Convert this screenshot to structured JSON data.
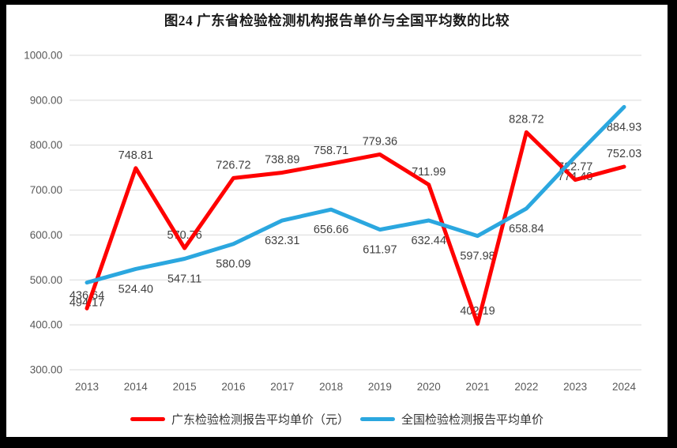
{
  "frame": {
    "background_color": "#000000",
    "canvas_color": "#ffffff"
  },
  "title": "图24  广东省检验检测机构报告单价与全国平均数的比较",
  "legend": {
    "items": [
      {
        "label": "广东检验检测报告平均单价（元）",
        "color": "#ff0000"
      },
      {
        "label": "全国检验检测报告平均单价",
        "color": "#2ba7df"
      }
    ],
    "position": "bottom"
  },
  "colors": {
    "gridline": "#d9d9d9",
    "tick_text": "#595959",
    "value_label_text": "#3f3f3f"
  },
  "chart_data": {
    "type": "line",
    "title": "图24  广东省检验检测机构报告单价与全国平均数的比较",
    "categories": [
      "2013",
      "2014",
      "2015",
      "2016",
      "2017",
      "2018",
      "2019",
      "2020",
      "2021",
      "2022",
      "2023",
      "2024"
    ],
    "series": [
      {
        "name": "广东检验检测报告平均单价（元）",
        "color": "#ff0000",
        "values": [
          436.64,
          748.81,
          570.76,
          726.72,
          738.89,
          758.71,
          779.36,
          711.99,
          402.19,
          828.72,
          722.77,
          752.03
        ]
      },
      {
        "name": "全国检验检测报告平均单价",
        "color": "#2ba7df",
        "values": [
          494.17,
          524.4,
          547.11,
          580.09,
          632.31,
          656.66,
          611.97,
          632.44,
          597.98,
          658.84,
          774.48,
          884.93
        ]
      }
    ],
    "xlabel": "",
    "ylabel": "",
    "ylim": [
      300,
      1000
    ],
    "ytick_labels": [
      "300.00",
      "400.00",
      "500.00",
      "600.00",
      "700.00",
      "800.00",
      "900.00",
      "1000.00"
    ],
    "grid": true,
    "value_labels": true,
    "legend_position": "bottom"
  }
}
